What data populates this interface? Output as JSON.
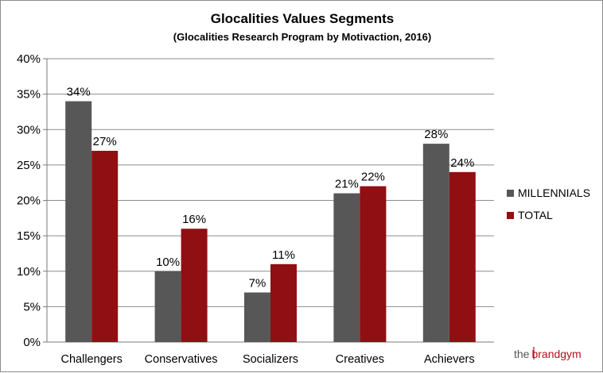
{
  "chart_data": {
    "type": "bar",
    "title": "Glocalities Values Segments",
    "subtitle": "(Glocalities Research Program by Motivaction, 2016)",
    "categories": [
      "Challengers",
      "Conservatives",
      "Socializers",
      "Creatives",
      "Achievers"
    ],
    "series": [
      {
        "name": "MILLENNIALS",
        "color": "#575757",
        "values": [
          34,
          10,
          7,
          21,
          28
        ],
        "labels": [
          "34%",
          "10%",
          "7%",
          "21%",
          "28%"
        ]
      },
      {
        "name": "TOTAL",
        "color": "#8f0f13",
        "values": [
          27,
          16,
          11,
          22,
          24
        ],
        "labels": [
          "27%",
          "16%",
          "11%",
          "22%",
          "24%"
        ]
      }
    ],
    "ylim": [
      0,
      40
    ],
    "yticks": [
      "0%",
      "5%",
      "10%",
      "15%",
      "20%",
      "25%",
      "30%",
      "35%",
      "40%"
    ],
    "grid": true,
    "legend_position": "right"
  },
  "watermark": {
    "prefix": "the",
    "brand": "brandgym"
  }
}
